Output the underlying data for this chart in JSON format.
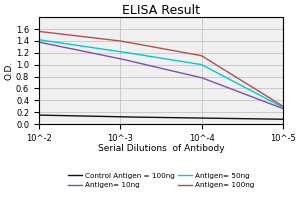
{
  "title": "ELISA Result",
  "ylabel": "O.D.",
  "xlabel": "Serial Dilutions  of Antibody",
  "x_values": [
    0.01,
    0.001,
    0.0001,
    1e-05
  ],
  "lines": [
    {
      "label": "Control Antigen = 100ng",
      "color": "#111111",
      "y": [
        0.15,
        0.12,
        0.1,
        0.08
      ]
    },
    {
      "label": "Antigen= 10ng",
      "color": "#7B52AB",
      "y": [
        1.38,
        1.1,
        0.78,
        0.26
      ]
    },
    {
      "label": "Antigen= 50ng",
      "color": "#00CCCC",
      "y": [
        1.42,
        1.22,
        1.0,
        0.28
      ]
    },
    {
      "label": "Antigen= 100ng",
      "color": "#B05050",
      "y": [
        1.56,
        1.4,
        1.15,
        0.3
      ]
    }
  ],
  "ylim": [
    0,
    1.8
  ],
  "yticks": [
    0,
    0.2,
    0.4,
    0.6,
    0.8,
    1.0,
    1.2,
    1.4,
    1.6
  ],
  "xtick_labels": [
    "10^-2",
    "10^-3",
    "10^-4",
    "10^-5"
  ],
  "xtick_vals": [
    0.01,
    0.001,
    0.0001,
    1e-05
  ],
  "background_color": "#f0f0f0",
  "title_fontsize": 9,
  "label_fontsize": 6.5,
  "tick_fontsize": 6,
  "legend_fontsize": 5.2
}
